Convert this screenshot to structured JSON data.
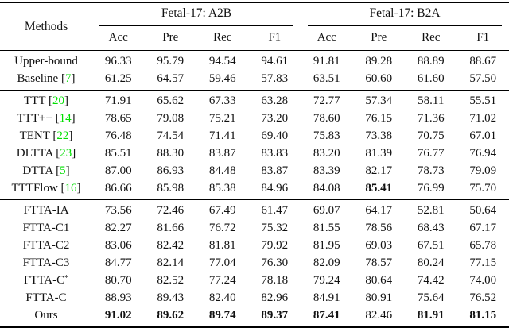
{
  "table": {
    "methods_header": "Methods",
    "col_groups": [
      "Fetal-17: A2B",
      "Fetal-17: B2A"
    ],
    "sub_headers": [
      "Acc",
      "Pre",
      "Rec",
      "F1",
      "Acc",
      "Pre",
      "Rec",
      "F1"
    ],
    "cite_color": "#00DF00",
    "groups": [
      {
        "name": "reference",
        "rows": [
          {
            "method": "Upper-bound",
            "values": [
              "96.33",
              "95.79",
              "94.54",
              "94.61",
              "91.81",
              "89.28",
              "88.89",
              "88.67"
            ]
          },
          {
            "method": "Baseline",
            "cite": "7",
            "values": [
              "61.25",
              "64.57",
              "59.46",
              "57.83",
              "63.51",
              "60.60",
              "61.60",
              "57.50"
            ]
          }
        ]
      },
      {
        "name": "comparison-methods",
        "rows": [
          {
            "method": "TTT",
            "cite": "20",
            "values": [
              "71.91",
              "65.62",
              "67.33",
              "63.28",
              "72.77",
              "57.34",
              "58.11",
              "55.51"
            ]
          },
          {
            "method": "TTT++",
            "cite": "14",
            "values": [
              "78.65",
              "79.08",
              "75.21",
              "73.20",
              "78.60",
              "76.15",
              "71.36",
              "71.02"
            ]
          },
          {
            "method": "TENT",
            "cite": "22",
            "values": [
              "76.48",
              "74.54",
              "71.41",
              "69.40",
              "75.83",
              "73.38",
              "70.75",
              "67.01"
            ]
          },
          {
            "method": "DLTTA",
            "cite": "23",
            "values": [
              "85.51",
              "88.30",
              "83.87",
              "83.83",
              "83.20",
              "81.39",
              "76.77",
              "76.94"
            ]
          },
          {
            "method": "DTTA",
            "cite": "5",
            "values": [
              "87.00",
              "86.93",
              "84.48",
              "83.87",
              "83.39",
              "82.17",
              "78.73",
              "79.09"
            ]
          },
          {
            "method": "TTTFlow",
            "cite": "16",
            "values": [
              "86.66",
              "85.98",
              "85.38",
              "84.96",
              "84.08",
              "85.41",
              "76.99",
              "75.70"
            ],
            "bold": [
              5
            ]
          }
        ]
      },
      {
        "name": "ablations-and-ours",
        "rows": [
          {
            "method": "FTTA-IA",
            "values": [
              "73.56",
              "72.46",
              "67.49",
              "61.47",
              "69.07",
              "64.17",
              "52.81",
              "50.64"
            ]
          },
          {
            "method": "FTTA-C1",
            "values": [
              "82.27",
              "81.66",
              "76.72",
              "75.32",
              "81.55",
              "78.56",
              "68.43",
              "67.17"
            ]
          },
          {
            "method": "FTTA-C2",
            "values": [
              "83.06",
              "82.42",
              "81.81",
              "79.92",
              "81.95",
              "69.03",
              "67.51",
              "65.78"
            ]
          },
          {
            "method": "FTTA-C3",
            "values": [
              "84.77",
              "82.14",
              "77.04",
              "76.30",
              "82.09",
              "78.57",
              "80.24",
              "77.15"
            ]
          },
          {
            "method": "FTTA-C",
            "sup": "*",
            "values": [
              "80.70",
              "82.52",
              "77.24",
              "78.18",
              "79.24",
              "80.64",
              "74.42",
              "74.00"
            ]
          },
          {
            "method": "FTTA-C",
            "values": [
              "88.93",
              "89.43",
              "82.40",
              "82.96",
              "84.91",
              "80.91",
              "75.64",
              "76.52"
            ]
          },
          {
            "method": "Ours",
            "values": [
              "91.02",
              "89.62",
              "89.74",
              "89.37",
              "87.41",
              "82.46",
              "81.91",
              "81.15"
            ],
            "bold": [
              0,
              1,
              2,
              3,
              4,
              6,
              7
            ]
          }
        ]
      }
    ]
  }
}
